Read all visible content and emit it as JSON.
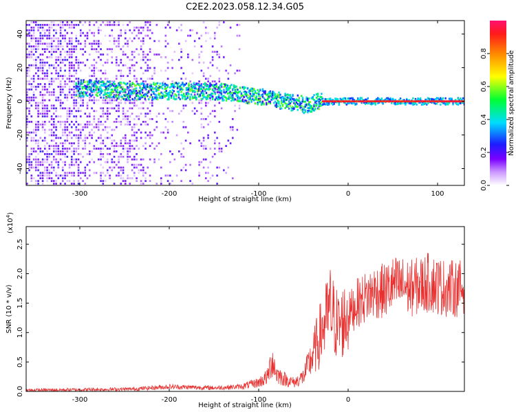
{
  "title": "C2E2.2023.058.12.34.G05",
  "chart_data": [
    {
      "type": "heatmap",
      "title": "C2E2.2023.058.12.34.G05",
      "xlabel": "Height of straight line (km)",
      "ylabel": "Frequency (Hz)",
      "xlim": [
        -360,
        130
      ],
      "ylim": [
        -50,
        48
      ],
      "xticks": [
        -300,
        -200,
        -100,
        0,
        100
      ],
      "xtick_labels": [
        "-300",
        "-200",
        "-100",
        "0",
        "100"
      ],
      "yticks": [
        -40,
        -20,
        0,
        20,
        40
      ],
      "ytick_labels": [
        "-40",
        "-20",
        "0",
        "20",
        "40"
      ],
      "colorbar": {
        "label": "Normalized spectral amplitude",
        "range": [
          0,
          1
        ],
        "ticks": [
          0.0,
          0.2,
          0.4,
          0.6,
          0.8
        ],
        "tick_labels": [
          "0.0",
          "0.2",
          "0.4",
          "0.6",
          "0.8"
        ]
      },
      "signal_track": [
        {
          "x": -300,
          "y": 8
        },
        {
          "x": -250,
          "y": 6
        },
        {
          "x": -200,
          "y": 6
        },
        {
          "x": -150,
          "y": 6
        },
        {
          "x": -100,
          "y": 3
        },
        {
          "x": -75,
          "y": 0
        },
        {
          "x": -50,
          "y": -2
        },
        {
          "x": -30,
          "y": 0
        },
        {
          "x": -20,
          "y": 0
        },
        {
          "x": 0,
          "y": 0
        },
        {
          "x": 130,
          "y": 0
        }
      ]
    },
    {
      "type": "line",
      "xlabel": "Height of straight line (km)",
      "ylabel": "SNR (10 * v/v)",
      "yscale_label": "(x10",
      "yscale_exponent": "4",
      "yscale_suffix": ")",
      "xlim": [
        -360,
        130
      ],
      "ylim": [
        0,
        2.8
      ],
      "xticks": [
        -300,
        -200,
        -100,
        0
      ],
      "xtick_labels": [
        "-300",
        "-200",
        "-100",
        "0"
      ],
      "yticks": [
        0.0,
        0.5,
        1.0,
        1.5,
        2.0,
        2.5
      ],
      "ytick_labels": [
        "0.0",
        "0.5",
        "1.0",
        "1.5",
        "2.0",
        "2.5"
      ],
      "color": "#e8302f",
      "series": [
        {
          "name": "SNR",
          "x": [
            -360,
            -300,
            -240,
            -200,
            -150,
            -120,
            -100,
            -90,
            -85,
            -80,
            -70,
            -60,
            -50,
            -40,
            -30,
            -25,
            -20,
            -15,
            -10,
            0,
            10,
            20,
            30,
            40,
            50,
            60,
            70,
            80,
            90,
            100,
            110,
            120,
            130
          ],
          "y": [
            0.02,
            0.03,
            0.04,
            0.08,
            0.06,
            0.08,
            0.15,
            0.25,
            0.55,
            0.3,
            0.2,
            0.15,
            0.25,
            0.6,
            1.0,
            1.2,
            1.4,
            1.2,
            1.1,
            1.3,
            1.5,
            1.6,
            1.7,
            1.7,
            1.8,
            1.8,
            1.75,
            1.8,
            1.85,
            1.8,
            1.75,
            1.75,
            1.75
          ]
        }
      ]
    }
  ]
}
